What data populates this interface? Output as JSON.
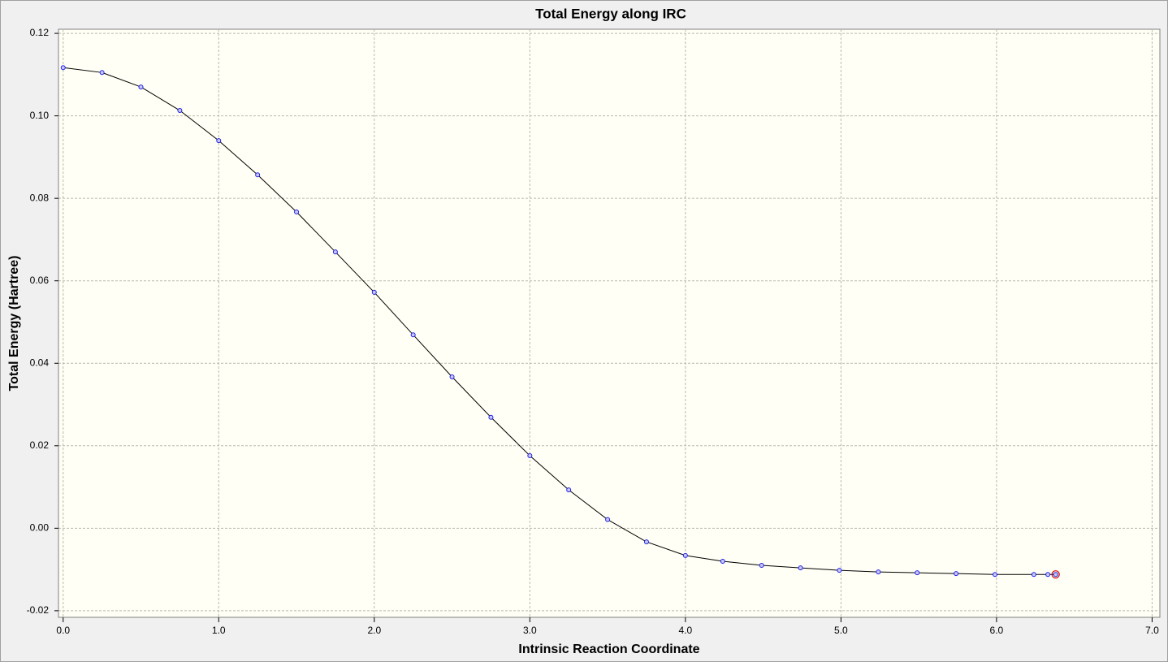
{
  "chart_data": {
    "type": "line",
    "title": "Total Energy along IRC",
    "x_label": "Intrinsic Reaction Coordinate",
    "y_label": "Total Energy (Hartree)",
    "x": [
      0,
      0.25,
      0.5,
      0.75,
      1.0,
      1.25,
      1.5,
      1.75,
      2.0,
      2.25,
      2.5,
      2.75,
      3.0,
      3.25,
      3.5,
      3.75,
      4.0,
      4.24,
      4.49,
      4.74,
      4.99,
      5.24,
      5.49,
      5.74,
      5.99,
      6.24,
      6.33,
      6.38
    ],
    "series": [
      {
        "name": "Total Energy",
        "color": "#000000",
        "marker_color": "#2020e0",
        "values": [
          0.1117,
          0.1105,
          0.107,
          0.1013,
          0.094,
          0.0857,
          0.0767,
          0.067,
          0.0572,
          0.0469,
          0.0367,
          0.0269,
          0.0176,
          0.0093,
          0.0021,
          -0.0033,
          -0.0066,
          -0.008,
          -0.009,
          -0.0096,
          -0.0102,
          -0.0106,
          -0.0108,
          -0.011,
          -0.0112,
          -0.0112,
          -0.0112,
          -0.0112
        ]
      }
    ],
    "highlight_index": 27,
    "highlight_color": "#cc0000",
    "xlim": [
      -0.03,
      7.05
    ],
    "ylim": [
      -0.0216,
      0.121
    ],
    "xticks": [
      {
        "value": 0,
        "label": "0.0"
      },
      {
        "value": 1,
        "label": "1.0"
      },
      {
        "value": 2,
        "label": "2.0"
      },
      {
        "value": 3,
        "label": "3.0"
      },
      {
        "value": 4,
        "label": "4.0"
      },
      {
        "value": 5,
        "label": "5.0"
      },
      {
        "value": 6,
        "label": "6.0"
      },
      {
        "value": 7,
        "label": "7.0"
      }
    ],
    "yticks": [
      {
        "value": -0.02,
        "label": "-0.02"
      },
      {
        "value": 0,
        "label": "0.00"
      },
      {
        "value": 0.02,
        "label": "0.02"
      },
      {
        "value": 0.04,
        "label": "0.04"
      },
      {
        "value": 0.06,
        "label": "0.06"
      },
      {
        "value": 0.08,
        "label": "0.08"
      },
      {
        "value": 0.1,
        "label": "0.10"
      },
      {
        "value": 0.12,
        "label": "0.12"
      }
    ],
    "grid": true,
    "plot_background": "#fffff5"
  }
}
